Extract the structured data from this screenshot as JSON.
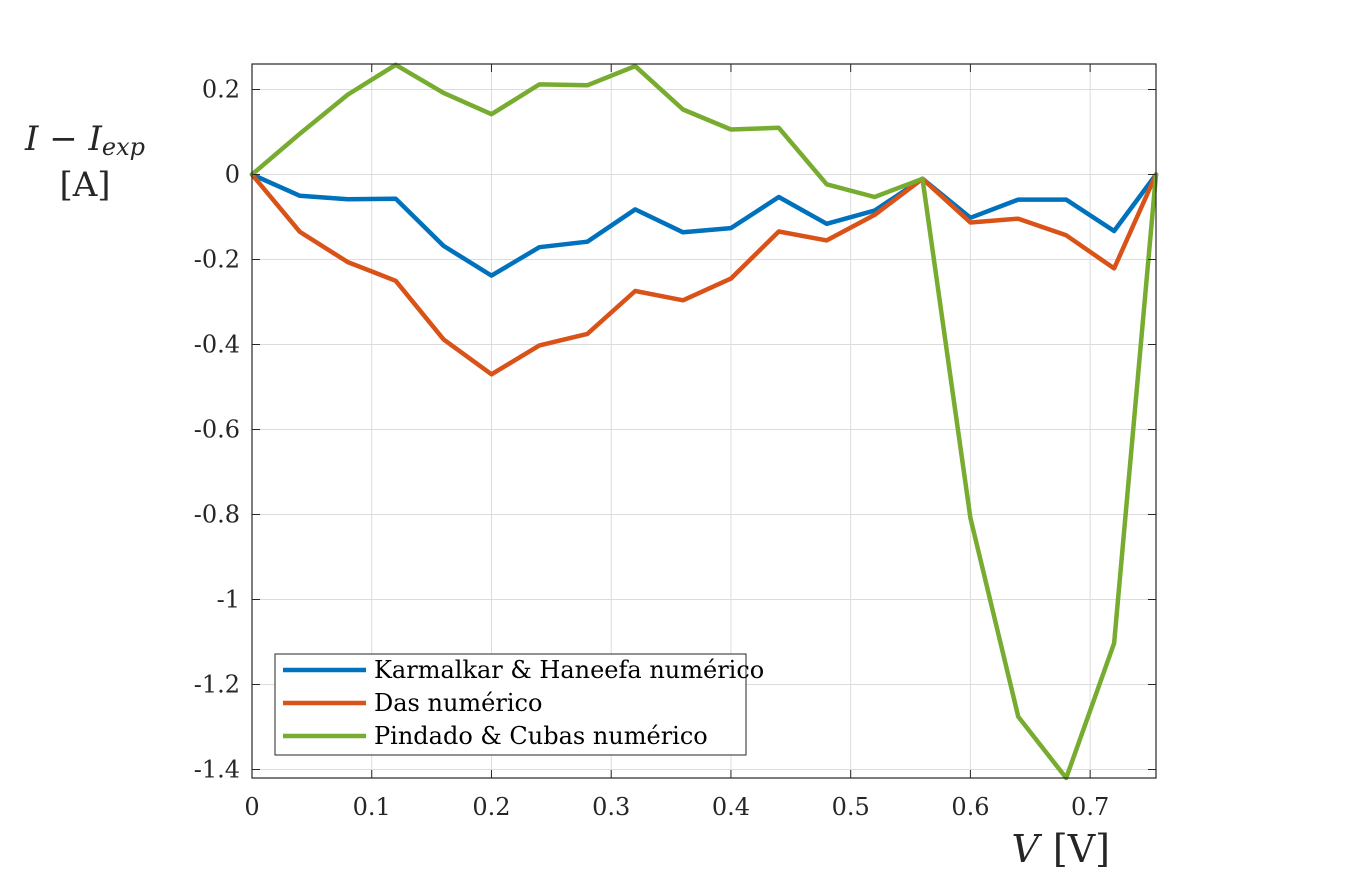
{
  "chart_data": {
    "type": "line",
    "title": "",
    "xlabel": {
      "var": "V",
      "unit": "[V]"
    },
    "ylabel": {
      "base": "I − I",
      "sub": "exp",
      "unit": "[A]"
    },
    "xlim": [
      0,
      0.755
    ],
    "ylim": [
      -1.42,
      0.26
    ],
    "xticks": [
      0,
      0.1,
      0.2,
      0.3,
      0.4,
      0.5,
      0.6,
      0.7
    ],
    "xtick_labels": [
      "0",
      "0.1",
      "0.2",
      "0.3",
      "0.4",
      "0.5",
      "0.6",
      "0.7"
    ],
    "yticks": [
      0.2,
      0,
      -0.2,
      -0.4,
      -0.6,
      -0.8,
      -1,
      -1.2,
      -1.4
    ],
    "ytick_labels": [
      "0.2",
      "0",
      "-0.2",
      "-0.4",
      "-0.6",
      "-0.8",
      "-1",
      "-1.2",
      "-1.4"
    ],
    "grid": true,
    "legend_position": "bottom-left",
    "x": [
      0,
      0.04,
      0.08,
      0.12,
      0.16,
      0.2,
      0.24,
      0.28,
      0.32,
      0.36,
      0.4,
      0.44,
      0.48,
      0.52,
      0.56,
      0.6,
      0.64,
      0.68,
      0.72,
      0.755
    ],
    "series": [
      {
        "name": "Karmalkar & Haneefa numérico",
        "color": "#0072BD",
        "values": [
          0,
          -0.05,
          -0.058,
          -0.057,
          -0.168,
          -0.238,
          -0.171,
          -0.158,
          -0.082,
          -0.136,
          -0.126,
          -0.053,
          -0.116,
          -0.085,
          -0.01,
          -0.102,
          -0.059,
          -0.059,
          -0.133,
          0
        ]
      },
      {
        "name": "Das numérico",
        "color": "#D95319",
        "values": [
          0,
          -0.135,
          -0.206,
          -0.25,
          -0.388,
          -0.47,
          -0.402,
          -0.375,
          -0.274,
          -0.296,
          -0.245,
          -0.134,
          -0.155,
          -0.095,
          -0.01,
          -0.113,
          -0.104,
          -0.143,
          -0.221,
          0
        ]
      },
      {
        "name": "Pindado & Cubas numérico",
        "color": "#77AC30",
        "values": [
          0,
          0.096,
          0.188,
          0.258,
          0.192,
          0.142,
          0.212,
          0.21,
          0.255,
          0.153,
          0.106,
          0.11,
          -0.023,
          -0.053,
          -0.01,
          -0.808,
          -1.276,
          -1.42,
          -1.103,
          0
        ]
      }
    ]
  }
}
